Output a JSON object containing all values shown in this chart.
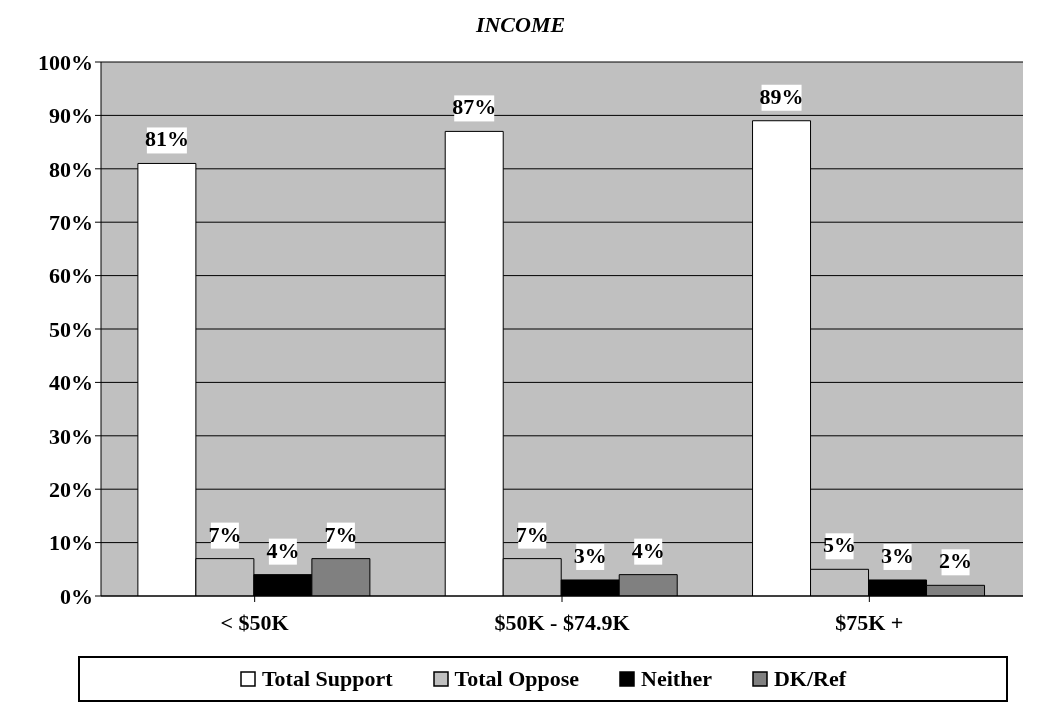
{
  "chart_data": {
    "type": "bar",
    "title": "INCOME",
    "categories": [
      "< $50K",
      "$50K - $74.9K",
      "$75K +"
    ],
    "series": [
      {
        "name": "Total Support",
        "color": "#ffffff",
        "values": [
          81,
          87,
          89
        ],
        "value_labels": [
          "81%",
          "87%",
          "89%"
        ]
      },
      {
        "name": "Total Oppose",
        "color": "#c0c0c0",
        "values": [
          7,
          7,
          5
        ],
        "value_labels": [
          "7%",
          "7%",
          "5%"
        ]
      },
      {
        "name": "Neither",
        "color": "#000000",
        "values": [
          4,
          3,
          3
        ],
        "value_labels": [
          "4%",
          "3%",
          "3%"
        ]
      },
      {
        "name": "DK/Ref",
        "color": "#808080",
        "values": [
          7,
          4,
          2
        ],
        "value_labels": [
          "7%",
          "4%",
          "2%"
        ]
      }
    ],
    "ylim": [
      0,
      100
    ],
    "yticks": [
      {
        "value": 0,
        "label": "0%"
      },
      {
        "value": 10,
        "label": "10%"
      },
      {
        "value": 20,
        "label": "20%"
      },
      {
        "value": 30,
        "label": "30%"
      },
      {
        "value": 40,
        "label": "40%"
      },
      {
        "value": 50,
        "label": "50%"
      },
      {
        "value": 60,
        "label": "60%"
      },
      {
        "value": 70,
        "label": "70%"
      },
      {
        "value": 80,
        "label": "80%"
      },
      {
        "value": 90,
        "label": "90%"
      },
      {
        "value": 100,
        "label": "100%"
      }
    ],
    "grid": "y",
    "legend": "bottom"
  }
}
